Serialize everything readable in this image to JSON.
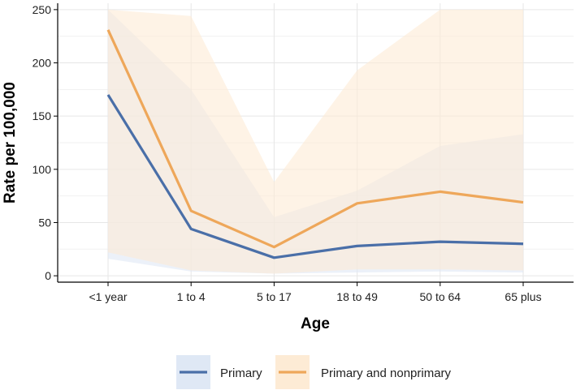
{
  "chart_data": {
    "type": "line",
    "title": "",
    "xlabel": "Age",
    "ylabel": "Rate per 100,000",
    "categories": [
      "<1 year",
      "1 to 4",
      "5 to 17",
      "18 to 49",
      "50 to 64",
      "65 plus"
    ],
    "ylim": [
      -6,
      256
    ],
    "yticks": [
      0,
      50,
      100,
      150,
      200,
      250
    ],
    "grid": true,
    "legend_position": "bottom",
    "series": [
      {
        "name": "Primary",
        "color": "#4a6fa8",
        "band_color": "#dfe8f5",
        "values": [
          170,
          44,
          17,
          28,
          32,
          30
        ],
        "lower": [
          16,
          4,
          2,
          3,
          4,
          3
        ],
        "upper": [
          250,
          175,
          55,
          80,
          122,
          133
        ]
      },
      {
        "name": "Primary and nonprimary",
        "color": "#eea75a",
        "band_color": "#fdebd5",
        "values": [
          231,
          61,
          27,
          68,
          79,
          69
        ],
        "lower": [
          22,
          5,
          2,
          6,
          6,
          5
        ],
        "upper": [
          250,
          244,
          88,
          193,
          250,
          250
        ]
      }
    ]
  }
}
